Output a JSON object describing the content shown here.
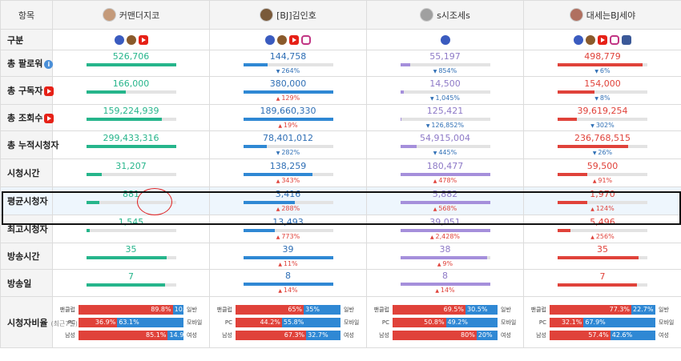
{
  "header": {
    "item_label": "항목",
    "streamers": [
      {
        "name": "커맨더지코",
        "avatar_color": "#c49a7a",
        "platforms": [
          "afreeca-icon",
          "twitch-icon",
          "youtube-icon"
        ]
      },
      {
        "name": "[BJ]김인호",
        "avatar_color": "#7a5a3a",
        "platforms": [
          "afreeca-icon",
          "twitch-icon",
          "youtube-icon",
          "instagram-icon"
        ]
      },
      {
        "name": "s시조세s",
        "avatar_color": "#a0a0a0",
        "platforms": [
          "afreeca-icon"
        ]
      },
      {
        "name": "대세는BJ세야",
        "avatar_color": "#b07060",
        "platforms": [
          "afreeca-icon",
          "twitch-icon",
          "youtube-icon",
          "instagram-icon",
          "facebook-icon"
        ]
      }
    ]
  },
  "rows": [
    {
      "label": "구분",
      "type": "platforms"
    },
    {
      "label": "총 팔로워",
      "label_icon": "info-icon",
      "type": "stat",
      "values": [
        {
          "value": "526,706",
          "fill": 1.0,
          "pct": ""
        },
        {
          "value": "144,758",
          "fill": 0.27,
          "pct": "264%",
          "dir": "down"
        },
        {
          "value": "55,197",
          "fill": 0.11,
          "pct": "854%",
          "dir": "down"
        },
        {
          "value": "498,779",
          "fill": 0.95,
          "pct": "6%",
          "dir": "down"
        }
      ]
    },
    {
      "label": "총 구독자",
      "label_icon": "youtube-icon",
      "type": "stat",
      "values": [
        {
          "value": "166,000",
          "fill": 0.44,
          "pct": ""
        },
        {
          "value": "380,000",
          "fill": 1.0,
          "pct": "129%",
          "dir": "up"
        },
        {
          "value": "14,500",
          "fill": 0.04,
          "pct": "1,045%",
          "dir": "down"
        },
        {
          "value": "154,000",
          "fill": 0.41,
          "pct": "8%",
          "dir": "down"
        }
      ]
    },
    {
      "label": "총 조회수",
      "label_icon": "youtube-icon",
      "type": "stat",
      "values": [
        {
          "value": "159,224,939",
          "fill": 0.84,
          "pct": ""
        },
        {
          "value": "189,660,330",
          "fill": 1.0,
          "pct": "19%",
          "dir": "up"
        },
        {
          "value": "125,421",
          "fill": 0.01,
          "pct": "126,852%",
          "dir": "down"
        },
        {
          "value": "39,619,254",
          "fill": 0.21,
          "pct": "302%",
          "dir": "down"
        }
      ]
    },
    {
      "label": "총 누적시청자",
      "type": "stat",
      "values": [
        {
          "value": "299,433,316",
          "fill": 1.0,
          "pct": ""
        },
        {
          "value": "78,401,012",
          "fill": 0.26,
          "pct": "282%",
          "dir": "down"
        },
        {
          "value": "54,915,004",
          "fill": 0.18,
          "pct": "445%",
          "dir": "down"
        },
        {
          "value": "236,768,515",
          "fill": 0.79,
          "pct": "26%",
          "dir": "down"
        }
      ]
    },
    {
      "label": "시청시간",
      "type": "stat",
      "values": [
        {
          "value": "31,207",
          "fill": 0.17,
          "pct": ""
        },
        {
          "value": "138,259",
          "fill": 0.77,
          "pct": "343%",
          "dir": "up"
        },
        {
          "value": "180,477",
          "fill": 1.0,
          "pct": "478%",
          "dir": "up"
        },
        {
          "value": "59,500",
          "fill": 0.33,
          "pct": "91%",
          "dir": "up"
        }
      ]
    },
    {
      "label": "평균시청자",
      "type": "stat",
      "highlight": true,
      "values": [
        {
          "value": "881",
          "fill": 0.15,
          "pct": ""
        },
        {
          "value": "3,416",
          "fill": 0.58,
          "pct": "288%",
          "dir": "up"
        },
        {
          "value": "5,882",
          "fill": 1.0,
          "pct": "568%",
          "dir": "up"
        },
        {
          "value": "1,970",
          "fill": 0.33,
          "pct": "124%",
          "dir": "up"
        }
      ]
    },
    {
      "label": "최고시청자",
      "type": "stat",
      "values": [
        {
          "value": "1,545",
          "fill": 0.04,
          "pct": ""
        },
        {
          "value": "13,493",
          "fill": 0.35,
          "pct": "773%",
          "dir": "up"
        },
        {
          "value": "39,051",
          "fill": 1.0,
          "pct": "2,428%",
          "dir": "up"
        },
        {
          "value": "5,496",
          "fill": 0.14,
          "pct": "256%",
          "dir": "up"
        }
      ]
    },
    {
      "label": "방송시간",
      "type": "stat",
      "values": [
        {
          "value": "35",
          "fill": 0.9,
          "pct": ""
        },
        {
          "value": "39",
          "fill": 1.0,
          "pct": "11%",
          "dir": "up"
        },
        {
          "value": "38",
          "fill": 0.97,
          "pct": "9%",
          "dir": "up"
        },
        {
          "value": "35",
          "fill": 0.9,
          "pct": ""
        }
      ]
    },
    {
      "label": "방송일",
      "type": "stat",
      "values": [
        {
          "value": "7",
          "fill": 0.88,
          "pct": ""
        },
        {
          "value": "8",
          "fill": 1.0,
          "pct": "14%",
          "dir": "up"
        },
        {
          "value": "8",
          "fill": 1.0,
          "pct": "14%",
          "dir": "up"
        },
        {
          "value": "7",
          "fill": 0.88,
          "pct": ""
        }
      ]
    }
  ],
  "ratio_row": {
    "label": "시청자비율",
    "sub": "(최근7일)",
    "line_labels": [
      {
        "left": "팬클럽",
        "right": "일반"
      },
      {
        "left": "PC",
        "right": "모바일"
      },
      {
        "left": "남성",
        "right": "여성"
      }
    ],
    "values": [
      [
        {
          "a": "89.8%",
          "b": "10.2%",
          "fa": 0.898
        },
        {
          "a": "36.9%",
          "b": "63.1%",
          "fa": 0.369
        },
        {
          "a": "85.1%",
          "b": "14.9%",
          "fa": 0.851
        }
      ],
      [
        {
          "a": "65%",
          "b": "35%",
          "fa": 0.65
        },
        {
          "a": "44.2%",
          "b": "55.8%",
          "fa": 0.442
        },
        {
          "a": "67.3%",
          "b": "32.7%",
          "fa": 0.673
        }
      ],
      [
        {
          "a": "69.5%",
          "b": "30.5%",
          "fa": 0.695
        },
        {
          "a": "50.8%",
          "b": "49.2%",
          "fa": 0.508
        },
        {
          "a": "80%",
          "b": "20%",
          "fa": 0.8
        }
      ],
      [
        {
          "a": "77.3%",
          "b": "22.7%",
          "fa": 0.773
        },
        {
          "a": "32.1%",
          "b": "67.9%",
          "fa": 0.321
        },
        {
          "a": "57.4%",
          "b": "42.6%",
          "fa": 0.574
        }
      ]
    ]
  }
}
